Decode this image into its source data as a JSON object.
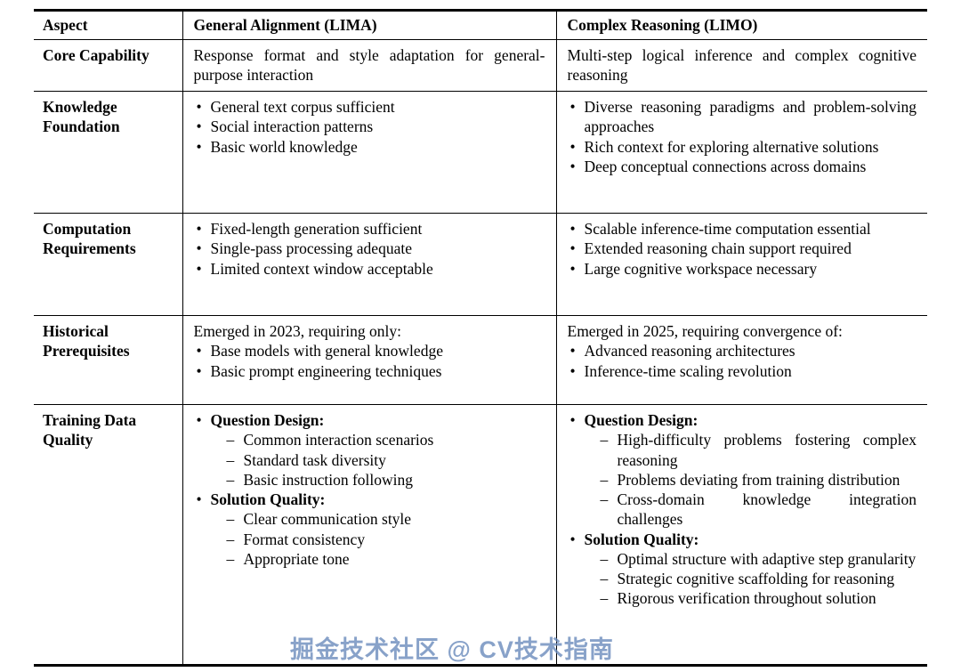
{
  "watermark": "掘金技术社区 @ CV技术指南",
  "table": {
    "headers": [
      "Aspect",
      "General Alignment (LIMA)",
      "Complex Reasoning (LIMO)"
    ],
    "rows": [
      {
        "aspect": "Core Capability",
        "lima_text": "Response format and style adaptation for general-purpose interaction",
        "limo_text": "Multi-step logical inference and complex cognitive reasoning"
      },
      {
        "aspect": "Knowledge Foundation",
        "lima_bullets": [
          "General text corpus sufficient",
          "Social interaction patterns",
          "Basic world knowledge"
        ],
        "limo_bullets": [
          "Diverse reasoning paradigms and problem-solving approaches",
          "Rich context for exploring alternative solutions",
          "Deep conceptual connections across domains"
        ]
      },
      {
        "aspect": "Computation Requirements",
        "lima_bullets": [
          "Fixed-length generation sufficient",
          "Single-pass processing adequate",
          "Limited context window acceptable"
        ],
        "limo_bullets": [
          "Scalable inference-time computation essential",
          "Extended reasoning chain support required",
          "Large cognitive workspace necessary"
        ]
      },
      {
        "aspect": "Historical Prerequisites",
        "lima_intro": "Emerged in 2023, requiring only:",
        "lima_bullets": [
          "Base models with general knowledge",
          "Basic prompt engineering techniques"
        ],
        "limo_intro": "Emerged in 2025, requiring convergence of:",
        "limo_bullets": [
          "Advanced reasoning architectures",
          "Inference-time scaling revolution"
        ]
      },
      {
        "aspect": "Training Data Quality",
        "lima_groups": [
          {
            "label": "Question Design:",
            "items": [
              "Common interaction scenarios",
              "Standard task diversity",
              "Basic instruction following"
            ]
          },
          {
            "label": "Solution Quality:",
            "items": [
              "Clear communication style",
              "Format consistency",
              "Appropriate tone"
            ]
          }
        ],
        "limo_groups": [
          {
            "label": "Question Design:",
            "items": [
              "High-difficulty problems fostering complex reasoning",
              "Problems deviating from training distribution",
              "Cross-domain knowledge integration challenges"
            ]
          },
          {
            "label": "Solution Quality:",
            "items": [
              "Optimal structure with adaptive step granularity",
              "Strategic cognitive scaffolding for reasoning",
              "Rigorous verification throughout solution"
            ]
          }
        ]
      }
    ]
  }
}
